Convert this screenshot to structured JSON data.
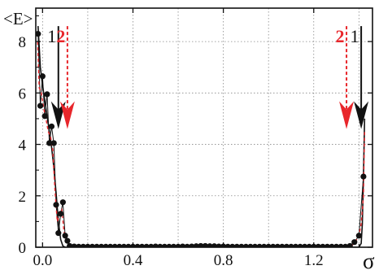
{
  "chart_data": {
    "type": "scatter",
    "ylabel": "<E>",
    "xlabel": "σ",
    "xlim": [
      -0.03,
      1.46
    ],
    "ylim": [
      0,
      9.3
    ],
    "x_ticks": [
      0.0,
      0.4,
      0.8,
      1.2
    ],
    "x_tick_labels": [
      "0.0",
      "0.4",
      "0.8",
      "1.2"
    ],
    "y_ticks": [
      0,
      2,
      4,
      6,
      8
    ],
    "y_tick_labels": [
      "0",
      "2",
      "4",
      "6",
      "8"
    ],
    "grid": true,
    "colors": {
      "series1": "#111111",
      "series2": "#e8262b"
    },
    "series": [
      {
        "style": "points+line",
        "color": "#111111",
        "x": [
          -0.02,
          -0.01,
          0.0,
          0.01,
          0.02,
          0.03,
          0.04,
          0.05,
          0.06,
          0.07,
          0.08,
          0.09,
          0.1,
          0.11,
          0.12,
          0.14,
          0.16,
          0.18,
          0.2,
          0.22,
          0.24,
          0.26,
          0.28,
          0.3,
          0.32,
          0.34,
          0.36,
          0.38,
          0.4,
          0.42,
          0.44,
          0.46,
          0.48,
          0.5,
          0.52,
          0.54,
          0.56,
          0.58,
          0.6,
          0.62,
          0.64,
          0.66,
          0.68,
          0.7,
          0.72,
          0.74,
          0.76,
          0.78,
          0.8,
          0.82,
          0.84,
          0.86,
          0.88,
          0.9,
          0.92,
          0.94,
          0.96,
          0.98,
          1.0,
          1.02,
          1.04,
          1.06,
          1.08,
          1.1,
          1.12,
          1.14,
          1.16,
          1.18,
          1.2,
          1.22,
          1.24,
          1.26,
          1.28,
          1.3,
          1.32,
          1.34,
          1.36,
          1.38,
          1.4,
          1.42
        ],
        "y": [
          8.3,
          5.5,
          6.65,
          5.1,
          5.95,
          4.05,
          4.7,
          4.05,
          1.65,
          0.55,
          1.3,
          1.75,
          0.45,
          0.25,
          0.05,
          0.03,
          0.02,
          0.02,
          0.02,
          0.02,
          0.02,
          0.02,
          0.02,
          0.02,
          0.02,
          0.02,
          0.02,
          0.02,
          0.02,
          0.02,
          0.02,
          0.02,
          0.02,
          0.03,
          0.02,
          0.02,
          0.02,
          0.02,
          0.02,
          0.03,
          0.02,
          0.03,
          0.04,
          0.05,
          0.05,
          0.04,
          0.04,
          0.03,
          0.03,
          0.02,
          0.02,
          0.02,
          0.02,
          0.02,
          0.02,
          0.02,
          0.02,
          0.02,
          0.02,
          0.02,
          0.02,
          0.02,
          0.02,
          0.02,
          0.02,
          0.02,
          0.02,
          0.02,
          0.02,
          0.02,
          0.02,
          0.02,
          0.02,
          0.02,
          0.02,
          0.02,
          0.05,
          0.2,
          0.45,
          2.75
        ]
      },
      {
        "style": "dashed",
        "color": "#e8262b",
        "x": [
          -0.022,
          -0.015,
          -0.005,
          0.005,
          0.015,
          0.025,
          0.035,
          0.045,
          0.055,
          0.065,
          0.075,
          0.085,
          0.095,
          0.105,
          0.115,
          0.125,
          0.14,
          0.16,
          1.33,
          1.35,
          1.37,
          1.38,
          1.39,
          1.4,
          1.41,
          1.42,
          1.425
        ],
        "y": [
          8.0,
          6.2,
          6.0,
          5.4,
          5.0,
          4.5,
          4.3,
          3.8,
          2.2,
          1.0,
          1.25,
          1.45,
          0.6,
          0.3,
          0.15,
          0.05,
          0.03,
          0.02,
          0.02,
          0.04,
          0.08,
          0.15,
          0.3,
          0.45,
          0.9,
          2.0,
          4.5
        ]
      }
    ],
    "solid_curve": {
      "x": [
        -0.02,
        -0.01,
        0.0,
        0.01,
        0.02,
        0.03,
        0.04,
        0.05,
        0.06,
        0.07,
        0.08,
        0.09,
        0.1,
        0.12,
        1.4,
        1.41,
        1.415,
        1.42,
        1.425
      ],
      "y": [
        8.6,
        7.0,
        6.3,
        5.7,
        5.1,
        4.5,
        3.9,
        3.1,
        2.1,
        1.0,
        0.3,
        0.05,
        0.0,
        0.0,
        0.0,
        0.15,
        0.9,
        2.8,
        5.0
      ]
    },
    "annotations": [
      {
        "label": "1",
        "color": "#111111",
        "x": 0.07,
        "y_top": 8.6,
        "y_tip": 4.6,
        "dashed": false
      },
      {
        "label": "2",
        "color": "#e8262b",
        "x": 0.11,
        "y_top": 8.6,
        "y_tip": 4.6,
        "dashed": true
      },
      {
        "label": "2",
        "color": "#e8262b",
        "x": 1.345,
        "y_top": 8.6,
        "y_tip": 4.6,
        "dashed": true
      },
      {
        "label": "1",
        "color": "#111111",
        "x": 1.41,
        "y_top": 8.6,
        "y_tip": 4.6,
        "dashed": false
      }
    ]
  }
}
